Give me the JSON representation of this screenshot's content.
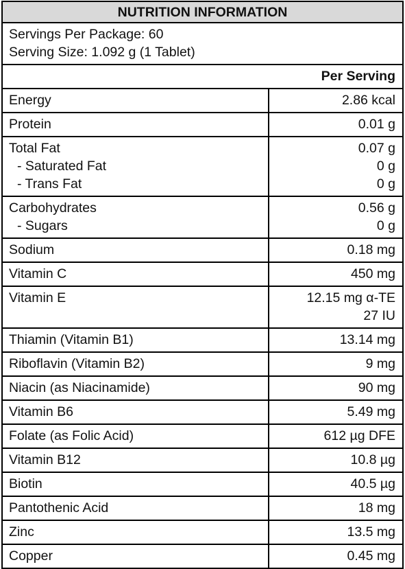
{
  "header": {
    "title": "NUTRITION INFORMATION",
    "servings_per_package": "Servings Per Package: 60",
    "serving_size": "Serving Size: 1.092 g (1 Tablet)",
    "column": "Per Serving"
  },
  "table": {
    "rows": [
      {
        "labels": [
          "Energy"
        ],
        "values": [
          "2.86 kcal"
        ]
      },
      {
        "labels": [
          "Protein"
        ],
        "values": [
          "0.01 g"
        ]
      },
      {
        "labels": [
          "Total Fat",
          "- Saturated Fat",
          "- Trans Fat"
        ],
        "values": [
          "0.07 g",
          "0 g",
          "0 g"
        ]
      },
      {
        "labels": [
          "Carbohydrates",
          "- Sugars"
        ],
        "values": [
          "0.56 g",
          "0 g"
        ]
      },
      {
        "labels": [
          "Sodium"
        ],
        "values": [
          "0.18 mg"
        ]
      },
      {
        "labels": [
          "Vitamin C"
        ],
        "values": [
          "450 mg"
        ]
      },
      {
        "labels": [
          "Vitamin E"
        ],
        "values": [
          "12.15 mg α-TE",
          "27 IU"
        ]
      },
      {
        "labels": [
          "Thiamin (Vitamin B1)"
        ],
        "values": [
          "13.14 mg"
        ]
      },
      {
        "labels": [
          "Riboflavin (Vitamin B2)"
        ],
        "values": [
          "9 mg"
        ]
      },
      {
        "labels": [
          "Niacin (as Niacinamide)"
        ],
        "values": [
          "90 mg"
        ]
      },
      {
        "labels": [
          "Vitamin B6"
        ],
        "values": [
          "5.49 mg"
        ]
      },
      {
        "labels": [
          "Folate (as Folic Acid)"
        ],
        "values": [
          "612 µg DFE"
        ]
      },
      {
        "labels": [
          "Vitamin B12"
        ],
        "values": [
          "10.8 µg"
        ]
      },
      {
        "labels": [
          "Biotin"
        ],
        "values": [
          "40.5 µg"
        ]
      },
      {
        "labels": [
          "Pantothenic Acid"
        ],
        "values": [
          "18 mg"
        ]
      },
      {
        "labels": [
          "Zinc"
        ],
        "values": [
          "13.5 mg"
        ]
      },
      {
        "labels": [
          "Copper"
        ],
        "values": [
          "0.45 mg"
        ]
      }
    ]
  }
}
